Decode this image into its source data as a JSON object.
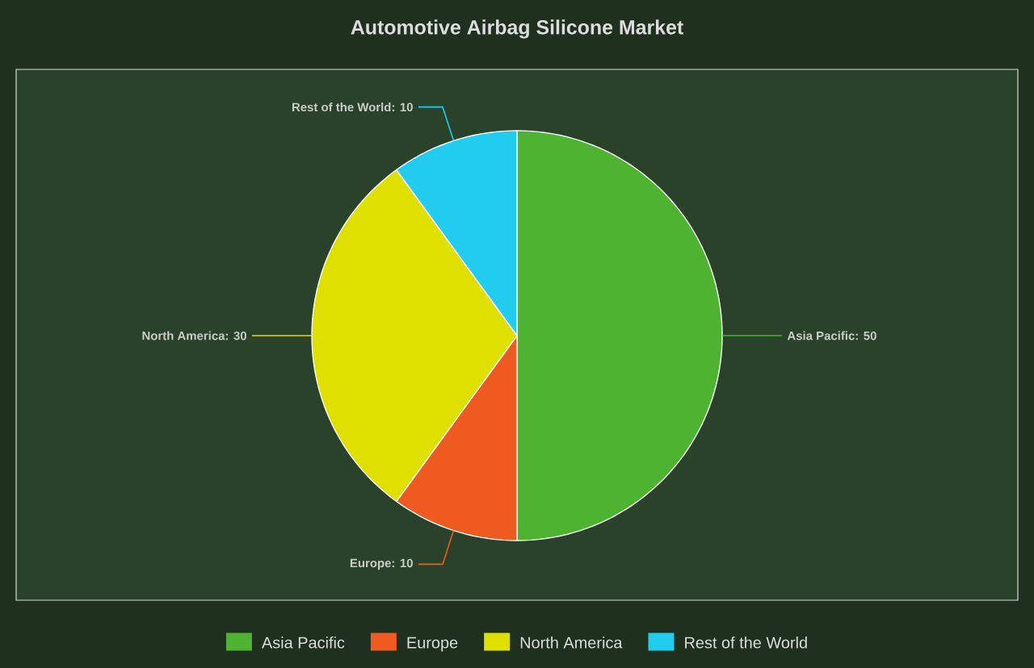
{
  "chart_data": {
    "type": "pie",
    "title": "Automotive Airbag Silicone Market",
    "categories": [
      "Asia Pacific",
      "Europe",
      "North America",
      "Rest of the World"
    ],
    "values": [
      50,
      10,
      30,
      10
    ],
    "colors": [
      "#4db330",
      "#ee5a1f",
      "#e0e000",
      "#22ccee"
    ],
    "value_labels": [
      "Asia Pacific: 50",
      "Europe: 10",
      "North America: 30",
      "Rest of the World: 10"
    ],
    "legend": "bottom"
  }
}
